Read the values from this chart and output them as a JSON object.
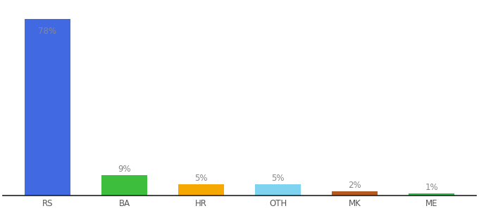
{
  "categories": [
    "RS",
    "BA",
    "HR",
    "OTH",
    "MK",
    "ME"
  ],
  "values": [
    78,
    9,
    5,
    5,
    2,
    1
  ],
  "labels": [
    "78%",
    "9%",
    "5%",
    "5%",
    "2%",
    "1%"
  ],
  "colors": [
    "#4169e1",
    "#3dbf3d",
    "#f5a800",
    "#7dd3f0",
    "#b35a1f",
    "#2db84d"
  ],
  "ylim": [
    0,
    85
  ],
  "background_color": "#ffffff",
  "label_color": "#888888",
  "label_fontsize": 8.5,
  "tick_fontsize": 8.5,
  "bar_width": 0.6
}
